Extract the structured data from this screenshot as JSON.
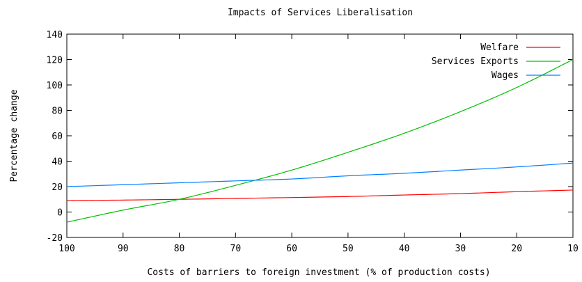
{
  "chart_data": {
    "type": "line",
    "title": "Impacts of Services Liberalisation",
    "xlabel": "Costs of barriers to foreign investment (% of production costs)",
    "ylabel": "Percentage change",
    "xlim": [
      100,
      10
    ],
    "ylim": [
      -20,
      140
    ],
    "x_ticks": [
      "100",
      "90",
      "80",
      "70",
      "60",
      "50",
      "40",
      "30",
      "20",
      "10"
    ],
    "y_ticks": [
      "-20",
      "0",
      "20",
      "40",
      "60",
      "80",
      "100",
      "120",
      "140"
    ],
    "grid": false,
    "legend_position": "top-right",
    "x": [
      100,
      90,
      80,
      70,
      60,
      50,
      40,
      30,
      20,
      10
    ],
    "series": [
      {
        "name": "Welfare",
        "color": "#ff0000",
        "values": [
          9,
          9.4,
          10,
          10.7,
          11.4,
          12.2,
          13.4,
          14.5,
          16,
          17.3
        ]
      },
      {
        "name": "Services Exports",
        "color": "#00c000",
        "values": [
          -8,
          1.5,
          10,
          21,
          33,
          47,
          62,
          79,
          98,
          120
        ]
      },
      {
        "name": "Wages",
        "color": "#0080ff",
        "values": [
          20,
          21.5,
          23,
          24.5,
          26,
          28.5,
          30.5,
          33,
          35.5,
          38.5
        ]
      }
    ]
  }
}
